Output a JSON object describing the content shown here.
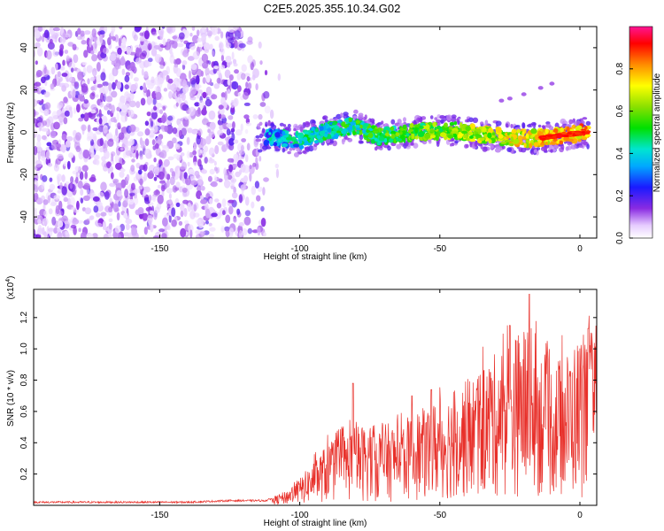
{
  "title": "C2E5.2025.355.10.34.G02",
  "chart_data": [
    {
      "type": "heatmap",
      "name": "spectrogram",
      "xlabel": "Height of straight line (km)",
      "ylabel": "Frequency (Hz)",
      "xlim": [
        -195,
        6
      ],
      "ylim": [
        -50,
        50
      ],
      "xticks": [
        -150,
        -100,
        -50,
        0
      ],
      "yticks": [
        -40,
        -20,
        0,
        20,
        40
      ],
      "colorbar": {
        "label": "Normalized spectral amplitude",
        "range": [
          0,
          1
        ],
        "ticks": [
          "0.0",
          "0.2",
          "0.4",
          "0.6",
          "0.8"
        ]
      },
      "noise_region_km": [
        -195,
        -112
      ],
      "signal_track": {
        "points": [
          {
            "x": -112,
            "y": -2
          },
          {
            "x": -100,
            "y": -4
          },
          {
            "x": -90,
            "y": 1
          },
          {
            "x": -80,
            "y": 3
          },
          {
            "x": -72,
            "y": -2
          },
          {
            "x": -60,
            "y": 0
          },
          {
            "x": -45,
            "y": 1
          },
          {
            "x": -30,
            "y": -2
          },
          {
            "x": -15,
            "y": -3
          },
          {
            "x": -5,
            "y": -1
          },
          {
            "x": 3,
            "y": 0
          }
        ],
        "spur": [
          {
            "x": -28,
            "y": 15
          },
          {
            "x": -25,
            "y": 16
          },
          {
            "x": -20,
            "y": 18
          },
          {
            "x": -14,
            "y": 21
          },
          {
            "x": -10,
            "y": 23
          }
        ]
      }
    },
    {
      "type": "line",
      "name": "snr",
      "xlabel": "Height of straight line (km)",
      "ylabel": "SNR (10 * v/v)",
      "yscale_label": "(x10",
      "yscale_exp": "4",
      "xlim": [
        -195,
        6
      ],
      "ylim": [
        0,
        1.38
      ],
      "xticks": [
        -150,
        -100,
        -50,
        0
      ],
      "yticks": [
        "0.2",
        "0.4",
        "0.6",
        "0.8",
        "1.0",
        "1.2"
      ],
      "series_color": "#e8302a",
      "envelope": [
        {
          "x": -195,
          "y": 0.02
        },
        {
          "x": -140,
          "y": 0.02
        },
        {
          "x": -125,
          "y": 0.03
        },
        {
          "x": -112,
          "y": 0.03
        },
        {
          "x": -105,
          "y": 0.08
        },
        {
          "x": -100,
          "y": 0.15
        },
        {
          "x": -90,
          "y": 0.35
        },
        {
          "x": -80,
          "y": 0.45
        },
        {
          "x": -70,
          "y": 0.45
        },
        {
          "x": -60,
          "y": 0.5
        },
        {
          "x": -50,
          "y": 0.6
        },
        {
          "x": -40,
          "y": 0.7
        },
        {
          "x": -30,
          "y": 0.85
        },
        {
          "x": -20,
          "y": 1.0
        },
        {
          "x": -10,
          "y": 0.8
        },
        {
          "x": -5,
          "y": 0.85
        },
        {
          "x": 0,
          "y": 0.95
        },
        {
          "x": 6,
          "y": 0.98
        }
      ],
      "peaks": [
        {
          "x": -81,
          "y": 0.78
        },
        {
          "x": -60,
          "y": 0.7
        },
        {
          "x": -53,
          "y": 0.74
        },
        {
          "x": -32,
          "y": 0.85
        },
        {
          "x": -25,
          "y": 1.15
        },
        {
          "x": -18,
          "y": 1.35
        },
        {
          "x": 3,
          "y": 1.13
        }
      ]
    }
  ]
}
